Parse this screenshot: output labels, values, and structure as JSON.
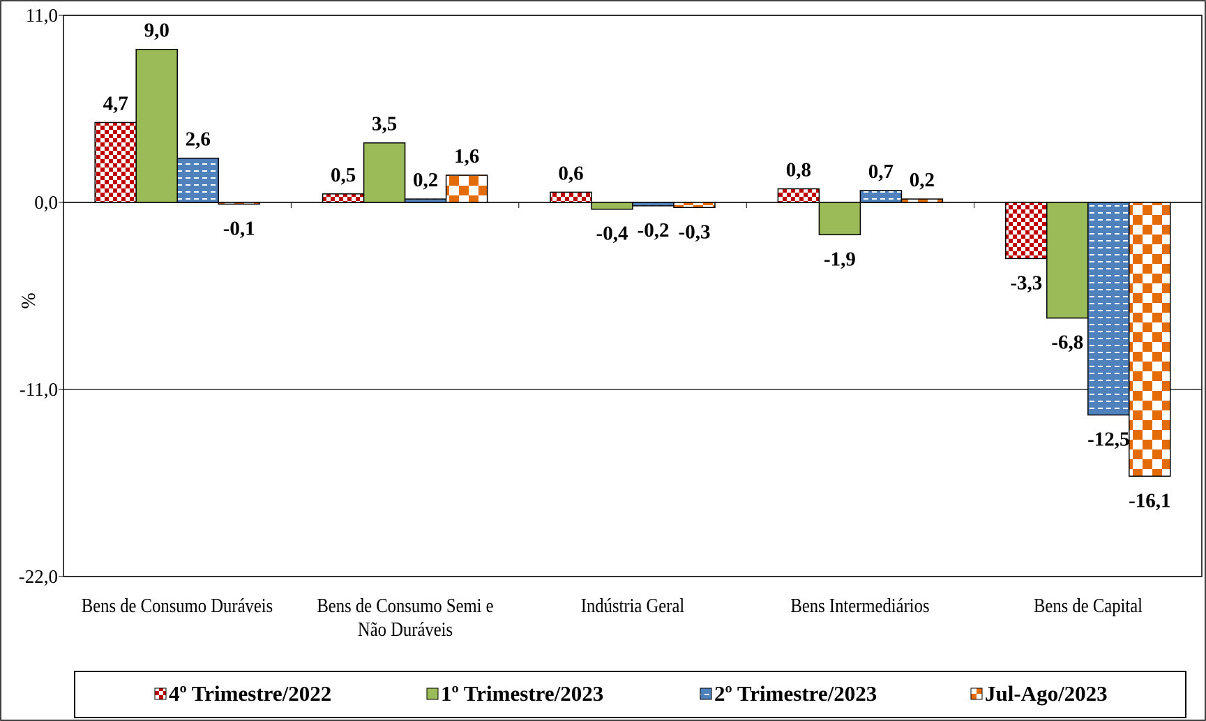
{
  "chart_data": {
    "type": "bar",
    "y_label": "%",
    "categories": [
      "Bens de Consumo Duráveis",
      "Bens de Consumo Semi e Não Duráveis",
      "Indústria Geral",
      "Bens Intermediários",
      "Bens de Capital"
    ],
    "series": [
      {
        "name": "4º Trimestre/2022",
        "color": "#c00000",
        "values": [
          4.7,
          0.5,
          0.6,
          0.8,
          -3.3
        ],
        "value_labels": [
          "4,7",
          "0,5",
          "0,6",
          "0,8",
          "-3,3"
        ]
      },
      {
        "name": "1º Trimestre/2023",
        "color": "#9bbb59",
        "values": [
          9.0,
          3.5,
          -0.4,
          -1.9,
          -6.8
        ],
        "value_labels": [
          "9,0",
          "3,5",
          "-0,4",
          "-1,9",
          "-6,8"
        ]
      },
      {
        "name": "2º Trimestre/2023",
        "color": "#4f81bd",
        "values": [
          2.6,
          0.2,
          -0.2,
          0.7,
          -12.5
        ],
        "value_labels": [
          "2,6",
          "0,2",
          "-0,2",
          "0,7",
          "-12,5"
        ]
      },
      {
        "name": "Jul-Ago/2023",
        "color": "#e36c09",
        "values": [
          -0.1,
          1.6,
          -0.3,
          0.2,
          -16.1
        ],
        "value_labels": [
          "-0,1",
          "1,6",
          "-0,3",
          "0,2",
          "-16,1"
        ]
      }
    ],
    "ylim": [
      -22,
      11
    ],
    "yticks": [
      {
        "value": -22,
        "label": "-22,0"
      },
      {
        "value": -11,
        "label": "-11,0"
      },
      {
        "value": 0,
        "label": "0,0"
      },
      {
        "value": 11,
        "label": "11,0"
      }
    ],
    "grid": true,
    "legend": "bottom"
  }
}
